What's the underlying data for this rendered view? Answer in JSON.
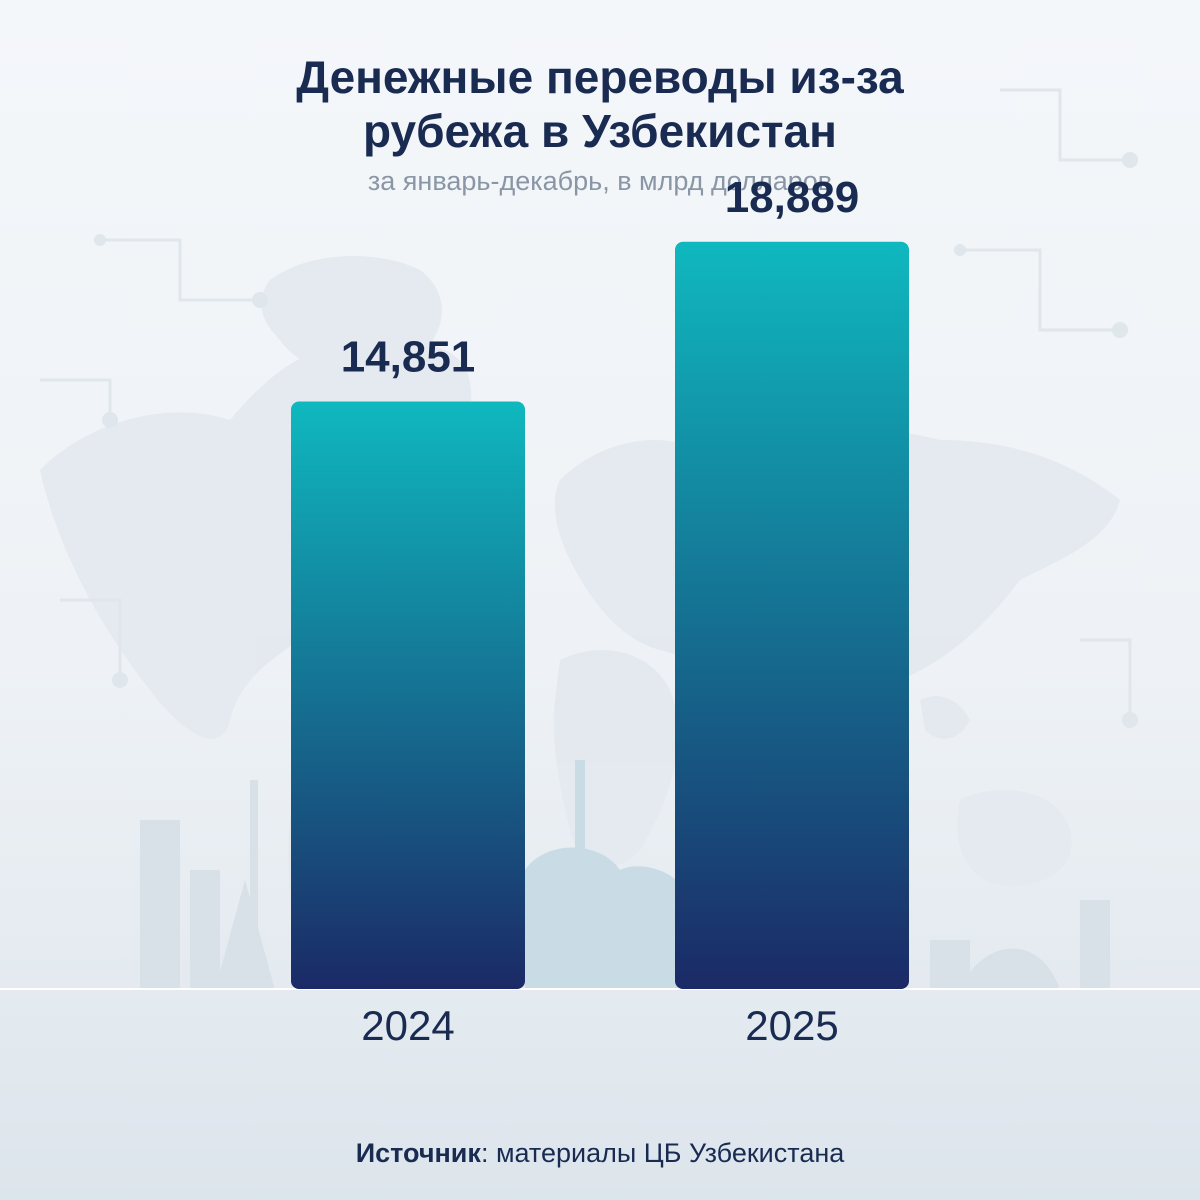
{
  "title_line1": "Денежные переводы из-за",
  "title_line2": "рубежа в Узбекистан",
  "subtitle": "за январь-декабрь, в млрд долларов",
  "source": {
    "label": "Источник",
    "text": ": материалы ЦБ Узбекистана"
  },
  "colors": {
    "bar_top": "#0fb8bf",
    "bar_bottom": "#1b2a66",
    "text_dark": "#1a2b52",
    "text_muted": "#8a96a6"
  },
  "chart_data": {
    "type": "bar",
    "categories": [
      "2024",
      "2025"
    ],
    "values": [
      14.851,
      18.889
    ],
    "value_labels": [
      "14,851",
      "18,889"
    ],
    "title": "Денежные переводы из-за рубежа в Узбекистан",
    "subtitle": "за январь-декабрь, в млрд долларов",
    "xlabel": "",
    "ylabel": "",
    "ylim": [
      0,
      25
    ],
    "grid": false,
    "legend": "none"
  }
}
